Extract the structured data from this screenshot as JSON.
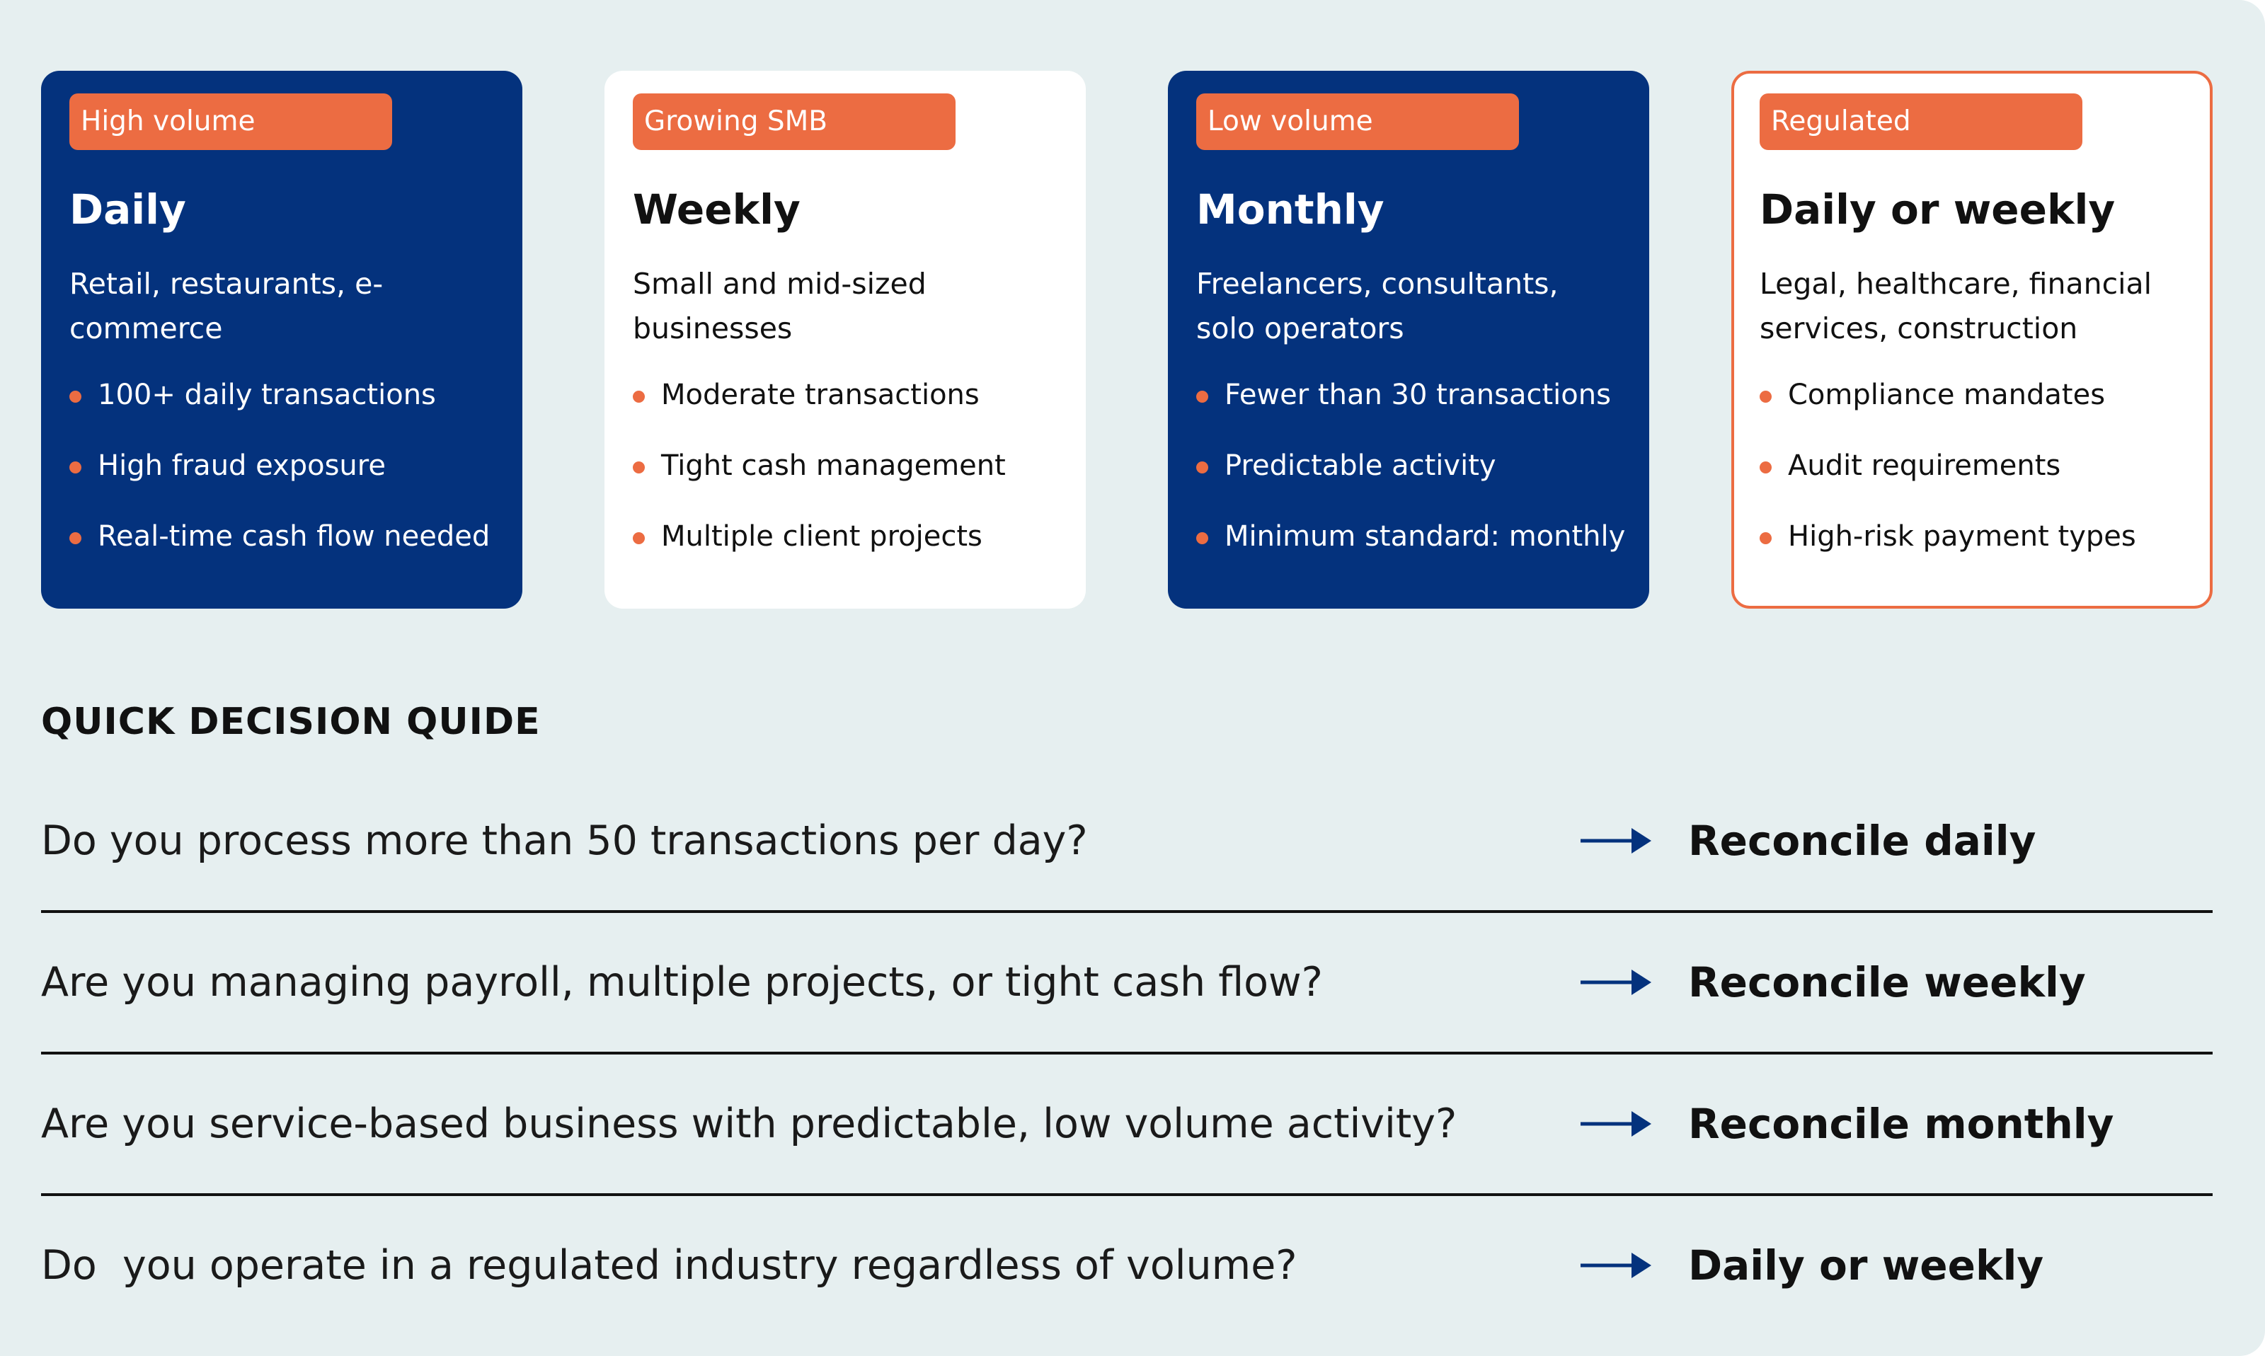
{
  "colors": {
    "background": "#e6eff0",
    "navy": "#04327d",
    "accent": "#ec6c42",
    "card_white": "#ffffff",
    "text": "#111111"
  },
  "cards": [
    {
      "badge": "High volume",
      "title": "Daily",
      "description": "Retail, restaurants, e-commerce",
      "bullets": [
        "100+ daily transactions",
        "High fraud exposure",
        "Real-time cash flow needed"
      ],
      "style": "dark"
    },
    {
      "badge": "Growing SMB",
      "title": "Weekly",
      "description": "Small and mid-sized businesses",
      "bullets": [
        "Moderate transactions",
        "Tight cash management",
        "Multiple client projects"
      ],
      "style": "light"
    },
    {
      "badge": "Low volume",
      "title": "Monthly",
      "description": "Freelancers, consultants, solo operators",
      "bullets": [
        "Fewer than 30 transactions",
        "Predictable activity",
        "Minimum standard: monthly"
      ],
      "style": "dark"
    },
    {
      "badge": "Regulated",
      "title": "Daily or weekly",
      "description": "Legal, healthcare, financial services, construction",
      "bullets": [
        "Compliance mandates",
        "Audit requirements",
        "High-risk payment types"
      ],
      "style": "outline"
    }
  ],
  "guide": {
    "title": "QUICK DECISION QUIDE",
    "arrow_icon": "arrow-right-icon",
    "rows": [
      {
        "question": "Do you process more than 50 transactions per day?",
        "answer": "Reconcile daily"
      },
      {
        "question": "Are you managing payroll, multiple projects, or tight cash flow?",
        "answer": "Reconcile weekly"
      },
      {
        "question": "Are you service-based business with predictable, low volume activity?",
        "answer": "Reconcile monthly"
      },
      {
        "question": "Do  you operate in a regulated industry regardless of volume?",
        "answer": "Daily or weekly"
      }
    ]
  }
}
